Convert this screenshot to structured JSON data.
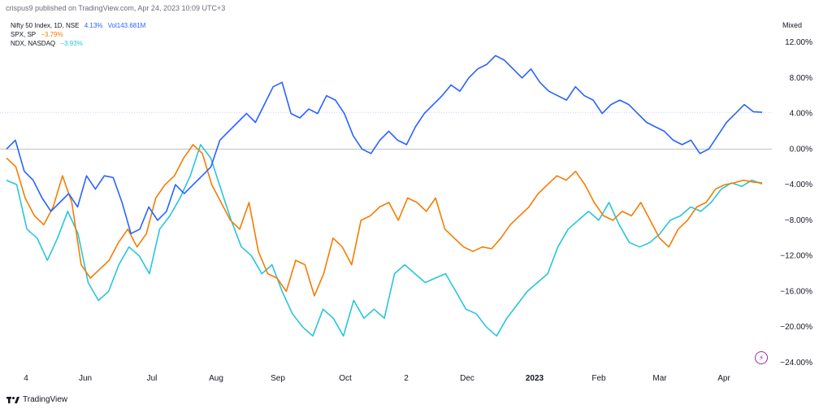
{
  "header": {
    "published_text": "crispus9 published on TradingView.com, Apr 24, 2023 10:09 UTC+3"
  },
  "legend": [
    {
      "symbol": "Nifty 50 Index, 1D, NSE",
      "value": "4.13%",
      "extra": "Vol143.681M",
      "color": "#2962ff"
    },
    {
      "symbol": "SPX, SP",
      "value": "−3.79%",
      "extra": "",
      "color": "#f57c00"
    },
    {
      "symbol": "NDX, NASDAQ",
      "value": "−3.93%",
      "extra": "",
      "color": "#26c6da"
    }
  ],
  "price_scale_mode": "Mixed",
  "footer": {
    "brand": "TradingView",
    "logo_icon": "tradingview-logo-icon",
    "bolt_icon": "lightning-icon"
  },
  "chart_data": {
    "type": "line",
    "xlabel": "",
    "ylabel": "",
    "ylim": [
      -24,
      12
    ],
    "x_tick_labels": [
      "4",
      "Jun",
      "Jul",
      "Aug",
      "Sep",
      "Oct",
      "2",
      "Dec",
      "2023",
      "Feb",
      "Mar",
      "Apr"
    ],
    "y_tick_labels": [
      "12.00%",
      "8.00%",
      "4.00%",
      "0.00%",
      "−4.00%",
      "−8.00%",
      "−12.00%",
      "−16.00%",
      "−20.00%",
      "−24.00%"
    ],
    "y_ticks": [
      12,
      8,
      4,
      0,
      -4,
      -8,
      -12,
      -16,
      -20,
      -24
    ],
    "series": [
      {
        "name": "Nifty 50 Index, 1D, NSE",
        "color": "#2962ff",
        "values": [
          0,
          1,
          -2.5,
          -3.5,
          -5.5,
          -7,
          -6,
          -5,
          -6.5,
          -3,
          -4.5,
          -3,
          -3.2,
          -6,
          -9.5,
          -9,
          -6.5,
          -8,
          -7,
          -4,
          -5,
          -4,
          -3,
          -2,
          1,
          2,
          3,
          4,
          3,
          5,
          7,
          7.5,
          4,
          3.5,
          4.5,
          4,
          6,
          5.5,
          4,
          1.5,
          0,
          -0.5,
          1,
          2,
          1,
          0.5,
          2.5,
          4,
          5,
          6,
          7.2,
          6.5,
          8,
          9,
          9.5,
          10.5,
          10,
          9,
          8,
          9,
          7.5,
          6.5,
          6,
          5.5,
          7,
          6,
          5.5,
          4,
          5,
          5.5,
          5,
          4,
          3,
          2.5,
          2,
          1,
          0.5,
          1,
          -0.5,
          0,
          1.5,
          3,
          4,
          5,
          4.2,
          4.13
        ]
      },
      {
        "name": "SPX, SP",
        "color": "#f57c00",
        "values": [
          -1,
          -2,
          -5.5,
          -7.5,
          -8.5,
          -6.5,
          -3,
          -6,
          -13,
          -14.5,
          -13.5,
          -12.5,
          -10.5,
          -9,
          -11,
          -9.5,
          -5.5,
          -4,
          -3,
          -1,
          0.5,
          -0.5,
          -4,
          -6,
          -8,
          -9,
          -6,
          -11.5,
          -14,
          -14.5,
          -16,
          -12.5,
          -13,
          -16.5,
          -14,
          -10,
          -11,
          -13,
          -8,
          -7.5,
          -6.5,
          -6,
          -8,
          -5.5,
          -6,
          -7,
          -5.5,
          -9,
          -10,
          -11,
          -11.5,
          -11,
          -11.2,
          -10,
          -8.5,
          -7.5,
          -6.5,
          -5,
          -4,
          -3,
          -3.5,
          -2.5,
          -4,
          -6,
          -7.5,
          -8,
          -7,
          -7.5,
          -6,
          -8,
          -10,
          -11,
          -9,
          -8,
          -6.5,
          -6,
          -4.5,
          -4,
          -3.8,
          -3.5,
          -3.7,
          -3.79
        ]
      },
      {
        "name": "NDX, NASDAQ",
        "color": "#26c6da",
        "values": [
          -3.5,
          -4,
          -9,
          -10,
          -12.5,
          -10,
          -7,
          -9.5,
          -15,
          -17,
          -16,
          -13,
          -11,
          -12,
          -14,
          -9,
          -7.5,
          -5.5,
          -3,
          0.5,
          -1,
          -4.5,
          -8,
          -11,
          -12,
          -14,
          -13,
          -16,
          -18.5,
          -20,
          -21,
          -18,
          -19,
          -21,
          -17,
          -19,
          -18,
          -19,
          -14,
          -13,
          -14,
          -15,
          -14.5,
          -14,
          -16,
          -18,
          -18.5,
          -20,
          -21,
          -19,
          -17.5,
          -16,
          -15,
          -14,
          -11,
          -9,
          -8,
          -7,
          -8,
          -6,
          -8.5,
          -10.5,
          -11,
          -10.5,
          -9.5,
          -8,
          -7.5,
          -6.5,
          -7,
          -6,
          -4.5,
          -3.8,
          -4.2,
          -3.5,
          -3.93
        ]
      }
    ]
  }
}
